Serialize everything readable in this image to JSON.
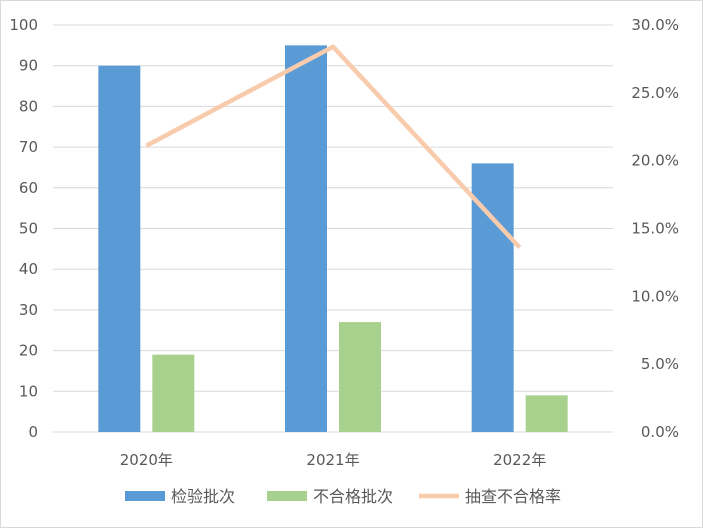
{
  "chart_data": {
    "type": "bar",
    "categories": [
      "2020年",
      "2021年",
      "2022年"
    ],
    "series": [
      {
        "name": "检验批次",
        "type": "bar",
        "axis": "left",
        "values": [
          90,
          95,
          66
        ],
        "color": "#5B9BD5"
      },
      {
        "name": "不合格批次",
        "type": "bar",
        "axis": "left",
        "values": [
          19,
          27,
          9
        ],
        "color": "#A9D18E"
      },
      {
        "name": "抽查不合格率",
        "type": "line",
        "axis": "right",
        "values": [
          0.211,
          0.284,
          0.136
        ],
        "color": "#F8CBAD"
      }
    ],
    "y_left": {
      "min": 0,
      "max": 100,
      "ticks": [
        "0",
        "10",
        "20",
        "30",
        "40",
        "50",
        "60",
        "70",
        "80",
        "90",
        "100"
      ]
    },
    "y_right": {
      "min": 0,
      "max": 0.3,
      "ticks": [
        "0.0%",
        "5.0%",
        "10.0%",
        "15.0%",
        "20.0%",
        "25.0%",
        "30.0%"
      ]
    },
    "grid": true,
    "legend_position": "bottom",
    "gridline_color": "#D9D9D9",
    "text_color": "#595959"
  }
}
